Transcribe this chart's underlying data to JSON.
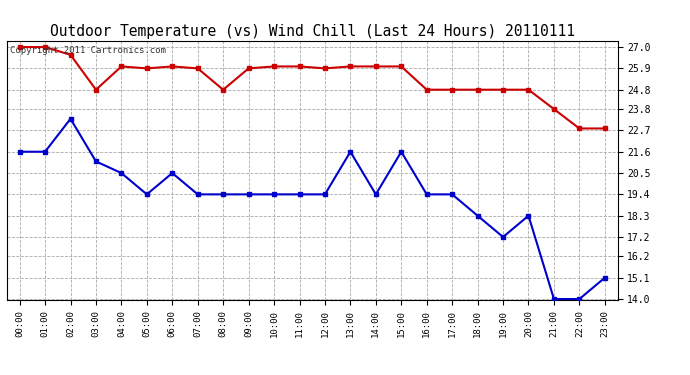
{
  "title": "Outdoor Temperature (vs) Wind Chill (Last 24 Hours) 20110111",
  "copyright": "Copyright 2011 Cartronics.com",
  "x_labels": [
    "00:00",
    "01:00",
    "02:00",
    "03:00",
    "04:00",
    "05:00",
    "06:00",
    "07:00",
    "08:00",
    "09:00",
    "10:00",
    "11:00",
    "12:00",
    "13:00",
    "14:00",
    "15:00",
    "16:00",
    "17:00",
    "18:00",
    "19:00",
    "20:00",
    "21:00",
    "22:00",
    "23:00"
  ],
  "temp_values": [
    21.6,
    21.6,
    23.3,
    21.1,
    20.5,
    19.4,
    20.5,
    19.4,
    19.4,
    19.4,
    19.4,
    19.4,
    19.4,
    21.6,
    19.4,
    21.6,
    19.4,
    19.4,
    18.3,
    17.2,
    18.3,
    14.0,
    14.0,
    15.1
  ],
  "windchill_values": [
    27.0,
    27.0,
    26.6,
    24.8,
    26.0,
    25.9,
    26.0,
    25.9,
    24.8,
    25.9,
    26.0,
    26.0,
    25.9,
    26.0,
    26.0,
    26.0,
    24.8,
    24.8,
    24.8,
    24.8,
    24.8,
    23.8,
    22.8,
    22.8
  ],
  "temp_color": "#0000cc",
  "windchill_color": "#cc0000",
  "ylim_min": 14.0,
  "ylim_max": 27.0,
  "y_ticks": [
    14.0,
    15.1,
    16.2,
    17.2,
    18.3,
    19.4,
    20.5,
    21.6,
    22.7,
    23.8,
    24.8,
    25.9,
    27.0
  ],
  "background_color": "#ffffff",
  "grid_color": "#aaaaaa",
  "title_fontsize": 10.5,
  "copyright_fontsize": 6.5
}
